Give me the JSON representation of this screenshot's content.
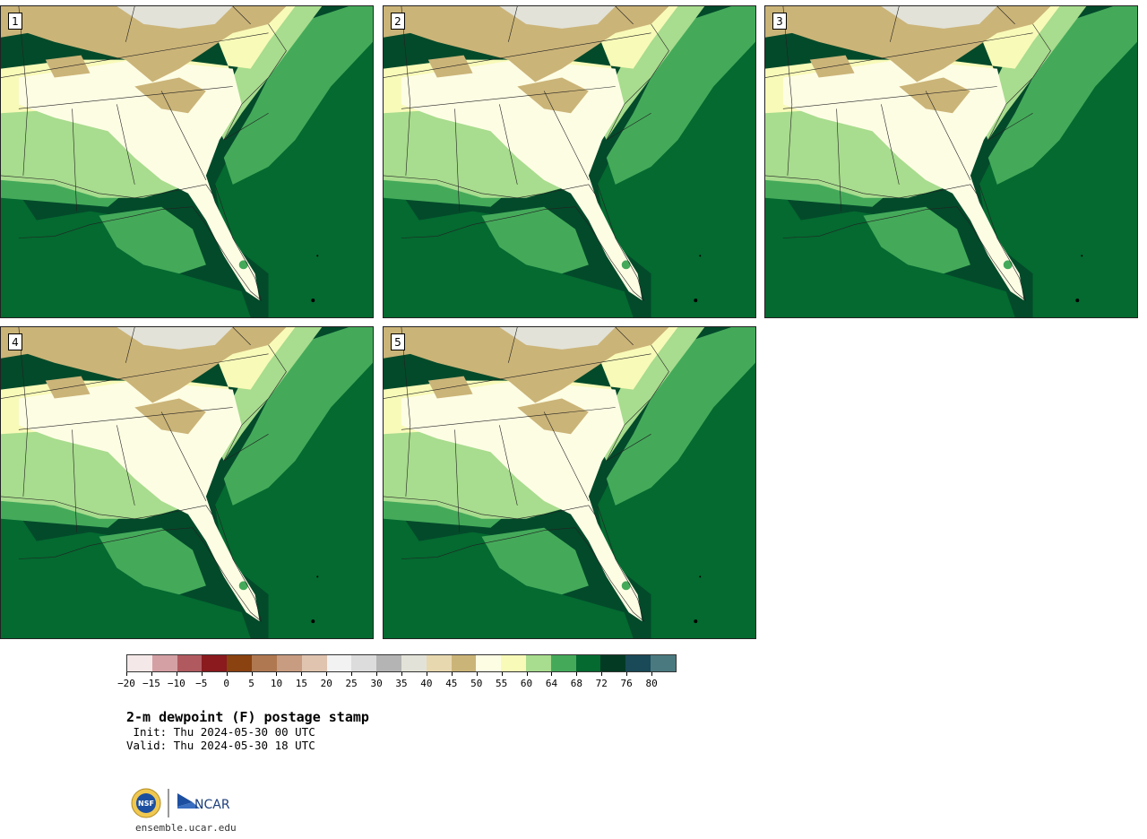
{
  "panels": [
    {
      "id": "1",
      "label": "1"
    },
    {
      "id": "2",
      "label": "2"
    },
    {
      "id": "3",
      "label": "3"
    },
    {
      "id": "4",
      "label": "4"
    },
    {
      "id": "5",
      "label": "5"
    }
  ],
  "colorbar": {
    "colors": [
      "#f5e8e8",
      "#d4a0a4",
      "#b05a60",
      "#8a1a1e",
      "#8a4210",
      "#b07850",
      "#c89c80",
      "#e0c4b0",
      "#f2f2f2",
      "#dcdcdc",
      "#b4b4b4",
      "#e2e2d8",
      "#e8d8b0",
      "#cbb478",
      "#fdfde4",
      "#f8fab8",
      "#a8dc8e",
      "#44aa5a",
      "#046a30",
      "#033a24",
      "#1a4a58",
      "#4a7a80"
    ],
    "ticks": [
      "−20",
      "−15",
      "−10",
      "−5",
      "0",
      "5",
      "10",
      "15",
      "20",
      "25",
      "30",
      "35",
      "40",
      "45",
      "50",
      "55",
      "60",
      "64",
      "68",
      "72",
      "76",
      "80"
    ]
  },
  "title": "2-m dewpoint (F) postage stamp",
  "init": " Init: Thu 2024-05-30 00 UTC",
  "valid": "Valid: Thu 2024-05-30 18 UTC",
  "logos": {
    "nsf": "NSF",
    "ncar": "NCAR"
  },
  "site": "ensemble.ucar.edu"
}
